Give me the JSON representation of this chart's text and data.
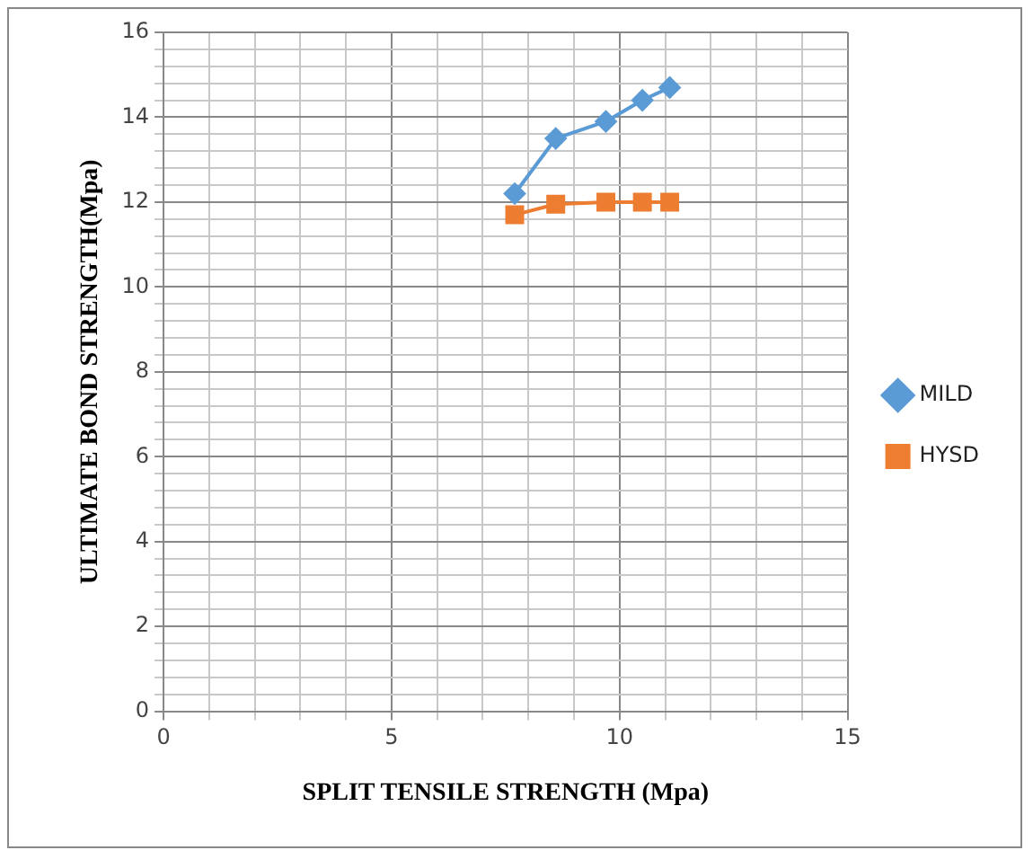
{
  "chart_data": {
    "type": "line",
    "xlabel": "SPLIT TENSILE STRENGTH (Mpa)",
    "ylabel": "ULTIMATE BOND STRENGTH(Mpa)",
    "xlim": [
      0,
      15
    ],
    "ylim": [
      0,
      16
    ],
    "xticks": [
      0,
      {
        "value": 1,
        "label": null
      },
      {
        "value": 2,
        "label": null
      },
      {
        "value": 3,
        "label": null
      },
      {
        "value": 4,
        "label": null
      },
      5,
      {
        "value": 6,
        "label": null
      },
      {
        "value": 7,
        "label": null
      },
      {
        "value": 8,
        "label": null
      },
      {
        "value": 9,
        "label": null
      },
      10,
      {
        "value": 11,
        "label": null
      },
      {
        "value": 12,
        "label": null
      },
      {
        "value": 13,
        "label": null
      },
      {
        "value": 14,
        "label": null
      },
      15
    ],
    "yticks": [
      0,
      {
        "value": 0.4,
        "label": null
      },
      {
        "value": 0.8,
        "label": null
      },
      {
        "value": 1.2,
        "label": null
      },
      {
        "value": 1.6,
        "label": null
      },
      2,
      {
        "value": 2.4,
        "label": null
      },
      {
        "value": 2.8,
        "label": null
      },
      {
        "value": 3.2,
        "label": null
      },
      {
        "value": 3.6,
        "label": null
      },
      4,
      {
        "value": 4.4,
        "label": null
      },
      {
        "value": 4.8,
        "label": null
      },
      {
        "value": 5.2,
        "label": null
      },
      {
        "value": 5.6,
        "label": null
      },
      6,
      {
        "value": 6.4,
        "label": null
      },
      {
        "value": 6.8,
        "label": null
      },
      {
        "value": 7.2,
        "label": null
      },
      {
        "value": 7.6,
        "label": null
      },
      8,
      {
        "value": 8.4,
        "label": null
      },
      {
        "value": 8.8,
        "label": null
      },
      {
        "value": 9.2,
        "label": null
      },
      {
        "value": 9.6,
        "label": null
      },
      10,
      {
        "value": 10.4,
        "label": null
      },
      {
        "value": 10.8,
        "label": null
      },
      {
        "value": 11.2,
        "label": null
      },
      {
        "value": 11.6,
        "label": null
      },
      12,
      {
        "value": 12.4,
        "label": null
      },
      {
        "value": 12.8,
        "label": null
      },
      {
        "value": 13.2,
        "label": null
      },
      {
        "value": 13.6,
        "label": null
      },
      14,
      {
        "value": 14.4,
        "label": null
      },
      {
        "value": 14.8,
        "label": null
      },
      {
        "value": 15.2,
        "label": null
      },
      {
        "value": 15.6,
        "label": null
      },
      16
    ],
    "grid": true,
    "legend": "right",
    "line_style": "solid",
    "series": [
      {
        "name": "MILD",
        "color": "#5b9bd5",
        "marker": "diamond",
        "x": [
          7.7,
          8.6,
          9.7,
          10.5,
          11.1
        ],
        "values": [
          12.2,
          13.5,
          13.9,
          14.4,
          14.7
        ]
      },
      {
        "name": "HYSD",
        "color": "#ed7d31",
        "marker": "square",
        "x": [
          7.7,
          8.6,
          9.7,
          10.5,
          11.1
        ],
        "values": [
          11.7,
          11.95,
          12.0,
          12.0,
          12.0
        ]
      }
    ]
  }
}
